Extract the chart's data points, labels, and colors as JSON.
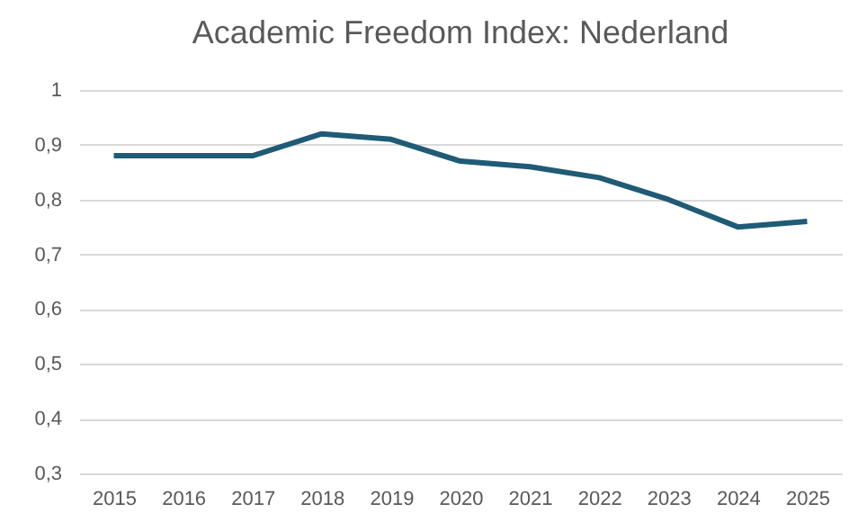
{
  "chart_data": {
    "type": "line",
    "title": "Academic Freedom Index: Nederland",
    "categories": [
      "2015",
      "2016",
      "2017",
      "2018",
      "2019",
      "2020",
      "2021",
      "2022",
      "2023",
      "2024",
      "2025"
    ],
    "series": [
      {
        "color": "#1f5b76",
        "values": [
          0.88,
          0.88,
          0.88,
          0.92,
          0.91,
          0.87,
          0.86,
          0.84,
          0.8,
          0.75,
          0.76
        ]
      }
    ],
    "ylim": [
      0.3,
      1
    ],
    "yticks": [
      {
        "value": 0.3,
        "label": "0,3"
      },
      {
        "value": 0.4,
        "label": "0,4"
      },
      {
        "value": 0.5,
        "label": "0,5"
      },
      {
        "value": 0.6,
        "label": "0,6"
      },
      {
        "value": 0.7,
        "label": "0,7"
      },
      {
        "value": 0.8,
        "label": "0,8"
      },
      {
        "value": 0.9,
        "label": "0,9"
      },
      1
    ],
    "grid": "y",
    "marker": "none",
    "line_style": "solid"
  }
}
